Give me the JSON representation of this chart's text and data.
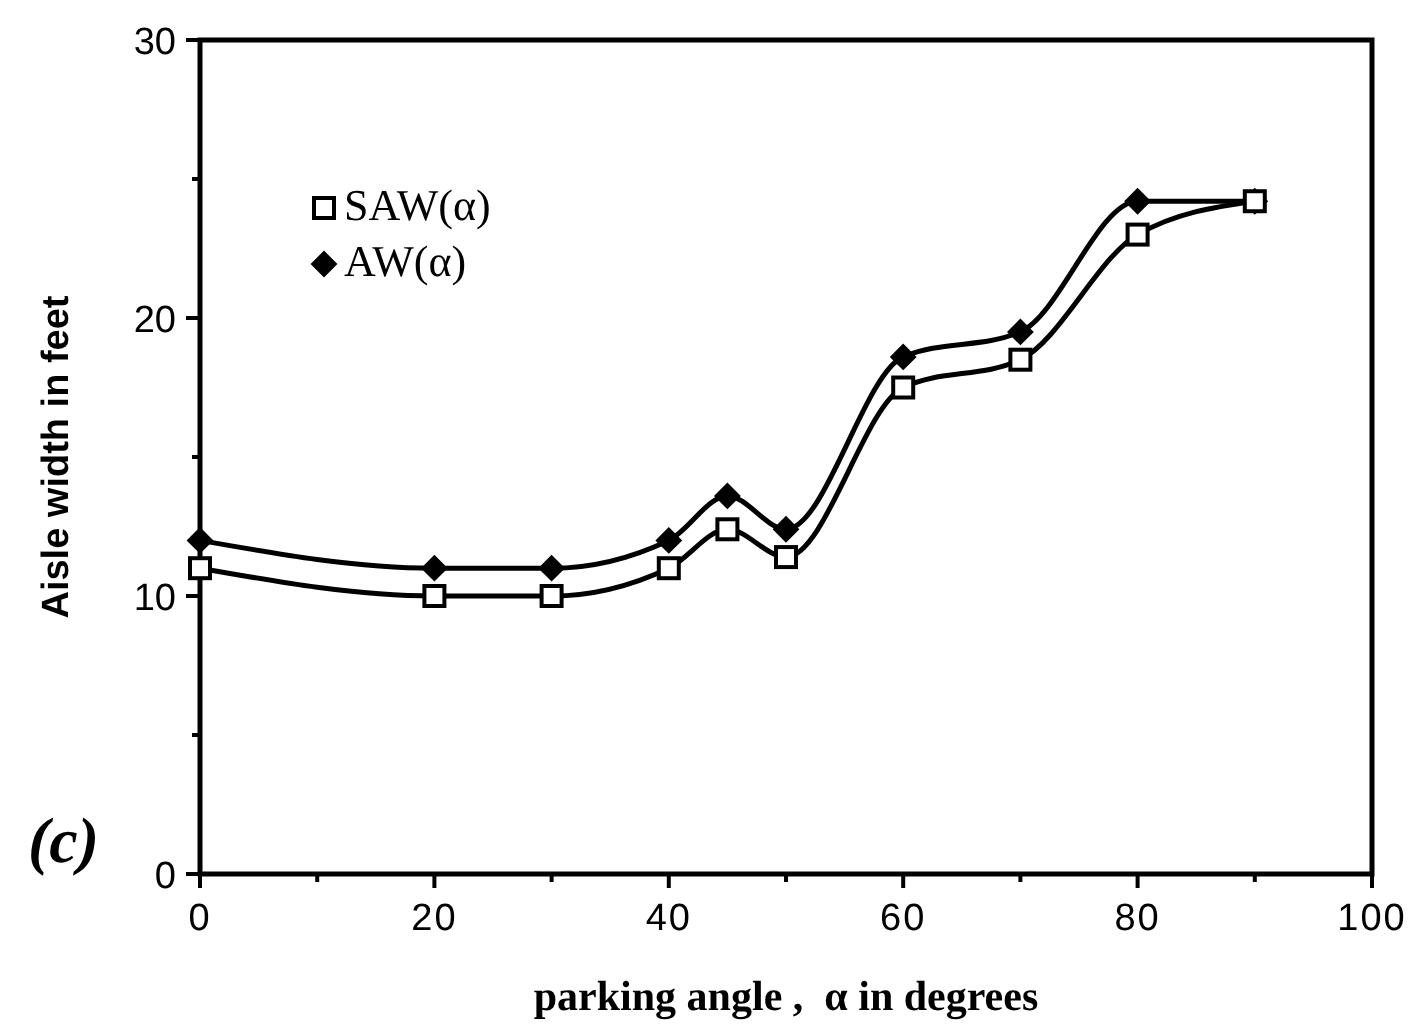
{
  "chart_data": {
    "type": "line",
    "xlabel": "parking angle ,  α in degrees",
    "ylabel": "Aisle width   in  feet",
    "annotations": [
      "(c)"
    ],
    "x": [
      0,
      20,
      30,
      40,
      45,
      50,
      60,
      70,
      80,
      90
    ],
    "series": [
      {
        "name": "SAW(α)",
        "color": "#000000",
        "marker": "square",
        "values": [
          11,
          10,
          10,
          11,
          12.4,
          11.4,
          17.5,
          18.5,
          23,
          24.2
        ]
      },
      {
        "name": "AW(α)",
        "color": "#000000",
        "marker": "diamond",
        "values": [
          12,
          11,
          11,
          12,
          13.6,
          12.4,
          18.6,
          19.5,
          24.2,
          24.2
        ]
      }
    ],
    "xlim": [
      0,
      100
    ],
    "ylim": [
      0,
      30
    ],
    "xticks": [
      0,
      {
        "value": 10,
        "label": null
      },
      20,
      {
        "value": 30,
        "label": null
      },
      40,
      {
        "value": 50,
        "label": null
      },
      60,
      {
        "value": 70,
        "label": null
      },
      80,
      {
        "value": 90,
        "label": null
      },
      100
    ],
    "yticks": [
      0,
      {
        "value": 5,
        "label": null
      },
      10,
      {
        "value": 15,
        "label": null
      },
      20,
      {
        "value": 25,
        "label": null
      },
      30
    ],
    "legend": "top left",
    "grid": false,
    "line_style": "solid"
  }
}
